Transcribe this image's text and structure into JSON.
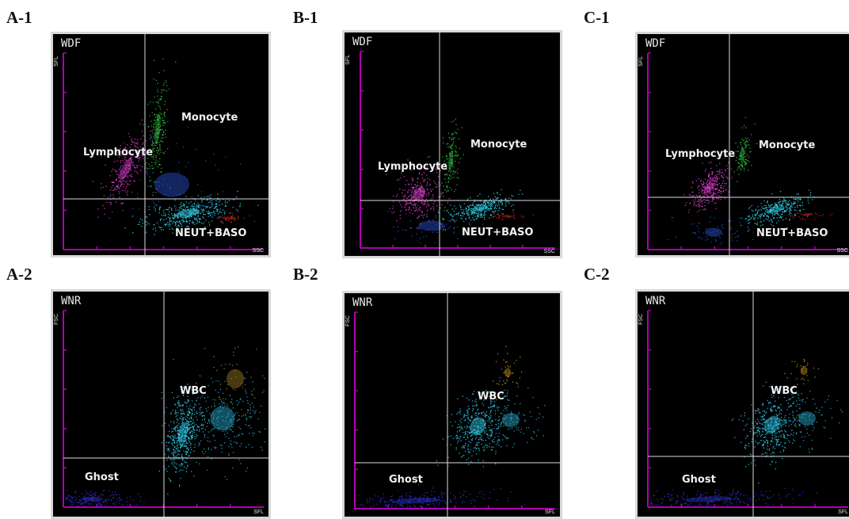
{
  "chart_data": [
    {
      "id": "A-1",
      "type": "scatter",
      "title": "WDF",
      "xlabel": "SSC",
      "ylabel": "SFL",
      "regions": [
        {
          "name": "Lymphocyte",
          "color": "#e040d0"
        },
        {
          "name": "Monocyte",
          "color": "#30c040"
        },
        {
          "name": "NEUT+BASO",
          "color": "#30d8f0"
        }
      ]
    },
    {
      "id": "B-1",
      "type": "scatter",
      "title": "WDF",
      "xlabel": "SSC",
      "ylabel": "SFL",
      "regions": [
        {
          "name": "Lymphocyte",
          "color": "#e040d0"
        },
        {
          "name": "Monocyte",
          "color": "#30c040"
        },
        {
          "name": "NEUT+BASO",
          "color": "#30d8f0"
        }
      ]
    },
    {
      "id": "C-1",
      "type": "scatter",
      "title": "WDF",
      "xlabel": "SSC",
      "ylabel": "SFL",
      "regions": [
        {
          "name": "Lymphocyte",
          "color": "#e040d0"
        },
        {
          "name": "Monocyte",
          "color": "#30c040"
        },
        {
          "name": "NEUT+BASO",
          "color": "#30d8f0"
        }
      ]
    },
    {
      "id": "A-2",
      "type": "scatter",
      "title": "WNR",
      "xlabel": "SFL",
      "ylabel": "FSC",
      "regions": [
        {
          "name": "WBC",
          "color": "#30c8e8"
        },
        {
          "name": "Ghost",
          "color": "#3030d0"
        }
      ]
    },
    {
      "id": "B-2",
      "type": "scatter",
      "title": "WNR",
      "xlabel": "SFL",
      "ylabel": "FSC",
      "regions": [
        {
          "name": "WBC",
          "color": "#30c8e8"
        },
        {
          "name": "Ghost",
          "color": "#3030d0"
        }
      ]
    },
    {
      "id": "C-2",
      "type": "scatter",
      "title": "WNR",
      "xlabel": "SFL",
      "ylabel": "FSC",
      "regions": [
        {
          "name": "WBC",
          "color": "#30c8e8"
        },
        {
          "name": "Ghost",
          "color": "#3030d0"
        }
      ]
    }
  ],
  "colors": {
    "axis": "#b000b0",
    "gate": "#dcdcdc",
    "background": "#000000"
  }
}
